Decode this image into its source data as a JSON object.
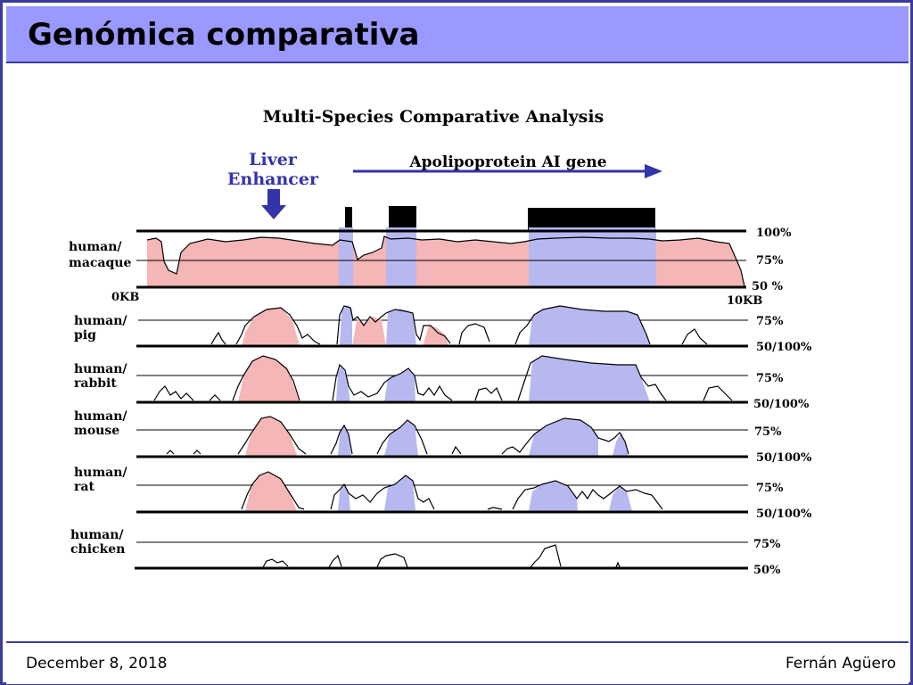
{
  "slide": {
    "title": "Genómica comparativa",
    "footer_date": "December 8, 2018",
    "footer_author": "Fernán Agüero"
  },
  "figure": {
    "title": "Multi-Species Comparative Analysis",
    "enhancer_label_line1": "Liver",
    "enhancer_label_line2": "Enhancer",
    "gene_label": "Apolipoprotein AI gene",
    "axis_start": "0KB",
    "axis_end": "10KB",
    "colors": {
      "conserved_noncoding": "#f4b6b6",
      "exon": "#b8b8f0",
      "arrow": "#3333aa",
      "trace": "#000000"
    },
    "panels": [
      {
        "label_line1": "human/",
        "label_line2": "macaque",
        "top_label": "100%",
        "mid_label": "75%",
        "bottom_label": "50 %"
      },
      {
        "label_line1": "human/",
        "label_line2": "pig",
        "top_label": "",
        "mid_label": "75%",
        "bottom_label": "50/100%"
      },
      {
        "label_line1": "human/",
        "label_line2": "rabbit",
        "top_label": "",
        "mid_label": "75%",
        "bottom_label": "50/100%"
      },
      {
        "label_line1": "human/",
        "label_line2": "mouse",
        "top_label": "",
        "mid_label": "75%",
        "bottom_label": "50/100%"
      },
      {
        "label_line1": "human/",
        "label_line2": "rat",
        "top_label": "",
        "mid_label": "75%",
        "bottom_label": "50/100%"
      },
      {
        "label_line1": "human/",
        "label_line2": "chicken",
        "top_label": "",
        "mid_label": "75%",
        "bottom_label": "50%"
      }
    ]
  }
}
